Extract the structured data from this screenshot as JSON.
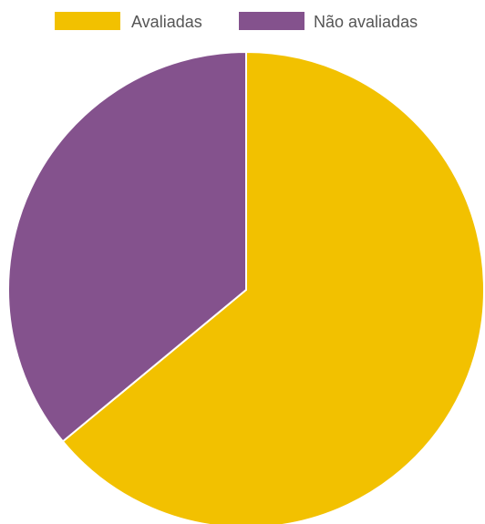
{
  "chart_data": {
    "type": "pie",
    "title": "",
    "legend_position": "top",
    "categories": [
      "Avaliadas",
      "Não avaliadas"
    ],
    "values": [
      64,
      36
    ],
    "colors": [
      "#f2c100",
      "#84528d"
    ],
    "slice_border_color": "#ffffff"
  }
}
